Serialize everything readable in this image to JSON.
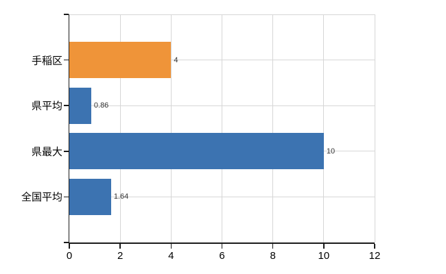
{
  "chart_data": {
    "type": "bar",
    "orientation": "horizontal",
    "title": "",
    "xlabel": "",
    "ylabel": "",
    "categories": [
      "手稲区",
      "県平均",
      "県最大",
      "全国平均"
    ],
    "values": [
      4,
      0.86,
      10,
      1.64
    ],
    "value_labels": [
      "4",
      "0.86",
      "10",
      "1.64"
    ],
    "bar_colors": [
      "#ef9439",
      "#3c73b1",
      "#3c73b1",
      "#3c73b1"
    ],
    "xlim": [
      0,
      12
    ],
    "x_ticks": [
      0,
      2,
      4,
      6,
      8,
      10,
      12
    ],
    "x_tick_labels": [
      "0",
      "2",
      "4",
      "6",
      "8",
      "10",
      "12"
    ],
    "grid": true,
    "legend": false
  },
  "colors": {
    "background": "#ffffff",
    "axis": "#1a1a1a",
    "grid": "#d6d6d6",
    "text": "#000000",
    "value_text": "#333333",
    "bar_orange": "#ef9439",
    "bar_blue": "#3c73b1"
  }
}
